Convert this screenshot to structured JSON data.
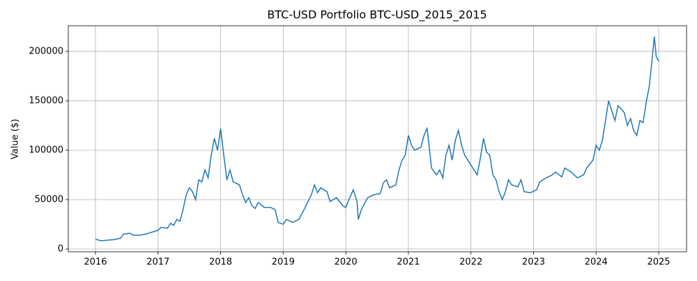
{
  "chart_data": {
    "type": "line",
    "title": "BTC-USD Portfolio BTC-USD_2015_2015",
    "y_label": "Value ($)",
    "x": [
      2016.0,
      2016.05,
      2016.1,
      2016.2,
      2016.3,
      2016.4,
      2016.45,
      2016.55,
      2016.6,
      2016.7,
      2016.8,
      2016.9,
      2017.0,
      2017.05,
      2017.15,
      2017.2,
      2017.25,
      2017.3,
      2017.35,
      2017.4,
      2017.45,
      2017.5,
      2017.55,
      2017.6,
      2017.65,
      2017.7,
      2017.75,
      2017.8,
      2017.85,
      2017.9,
      2017.95,
      2018.0,
      2018.05,
      2018.1,
      2018.15,
      2018.2,
      2018.3,
      2018.35,
      2018.4,
      2018.45,
      2018.5,
      2018.55,
      2018.6,
      2018.7,
      2018.8,
      2018.87,
      2018.92,
      2019.0,
      2019.05,
      2019.15,
      2019.25,
      2019.35,
      2019.45,
      2019.5,
      2019.55,
      2019.6,
      2019.7,
      2019.75,
      2019.85,
      2019.95,
      2020.0,
      2020.05,
      2020.12,
      2020.18,
      2020.2,
      2020.25,
      2020.35,
      2020.45,
      2020.55,
      2020.6,
      2020.65,
      2020.7,
      2020.8,
      2020.85,
      2020.9,
      2020.95,
      2021.0,
      2021.05,
      2021.1,
      2021.2,
      2021.25,
      2021.3,
      2021.33,
      2021.37,
      2021.45,
      2021.5,
      2021.55,
      2021.6,
      2021.65,
      2021.7,
      2021.75,
      2021.8,
      2021.85,
      2021.9,
      2021.95,
      2022.0,
      2022.05,
      2022.1,
      2022.15,
      2022.2,
      2022.25,
      2022.3,
      2022.35,
      2022.4,
      2022.45,
      2022.5,
      2022.55,
      2022.6,
      2022.65,
      2022.75,
      2022.8,
      2022.85,
      2022.95,
      2023.05,
      2023.1,
      2023.2,
      2023.3,
      2023.35,
      2023.45,
      2023.5,
      2023.6,
      2023.7,
      2023.8,
      2023.85,
      2023.95,
      2024.0,
      2024.05,
      2024.1,
      2024.15,
      2024.2,
      2024.25,
      2024.3,
      2024.35,
      2024.4,
      2024.45,
      2024.5,
      2024.55,
      2024.6,
      2024.65,
      2024.7,
      2024.75,
      2024.8,
      2024.85,
      2024.9,
      2024.93,
      2024.96,
      2025.0
    ],
    "series": [
      {
        "color": "#1f77b4",
        "values": [
          10000,
          9000,
          8500,
          9000,
          9500,
          11000,
          15000,
          16000,
          14000,
          14000,
          15000,
          17000,
          19000,
          22000,
          21000,
          26000,
          24000,
          30000,
          28000,
          40000,
          55000,
          62000,
          58000,
          50000,
          70000,
          68000,
          80000,
          72000,
          95000,
          112000,
          100000,
          122000,
          95000,
          70000,
          80000,
          68000,
          65000,
          55000,
          47000,
          52000,
          44000,
          41000,
          47000,
          42000,
          42000,
          40000,
          27000,
          25000,
          30000,
          27000,
          30000,
          42000,
          55000,
          65000,
          57000,
          62000,
          58000,
          48000,
          52000,
          44000,
          42000,
          50000,
          60000,
          48000,
          30000,
          40000,
          52000,
          55000,
          56000,
          67000,
          70000,
          62000,
          65000,
          80000,
          90000,
          95000,
          115000,
          105000,
          100000,
          103000,
          115000,
          122000,
          105000,
          82000,
          75000,
          80000,
          72000,
          95000,
          105000,
          90000,
          110000,
          120000,
          105000,
          95000,
          90000,
          85000,
          80000,
          75000,
          92000,
          112000,
          98000,
          95000,
          75000,
          70000,
          58000,
          50000,
          58000,
          70000,
          65000,
          63000,
          70000,
          58000,
          57000,
          60000,
          68000,
          72000,
          75000,
          78000,
          73000,
          82000,
          78000,
          72000,
          75000,
          82000,
          90000,
          105000,
          100000,
          110000,
          130000,
          150000,
          140000,
          130000,
          145000,
          142000,
          138000,
          125000,
          132000,
          120000,
          115000,
          130000,
          128000,
          148000,
          165000,
          195000,
          215000,
          195000,
          190000
        ]
      }
    ],
    "xlim": [
      2015.566,
      2025.445
    ],
    "xticks": [
      2016,
      2017,
      2018,
      2019,
      2020,
      2021,
      2022,
      2023,
      2024,
      2025
    ],
    "ylim": [
      -2800,
      226000
    ],
    "yticks": [
      0,
      50000,
      100000,
      150000,
      200000
    ],
    "grid": true
  }
}
